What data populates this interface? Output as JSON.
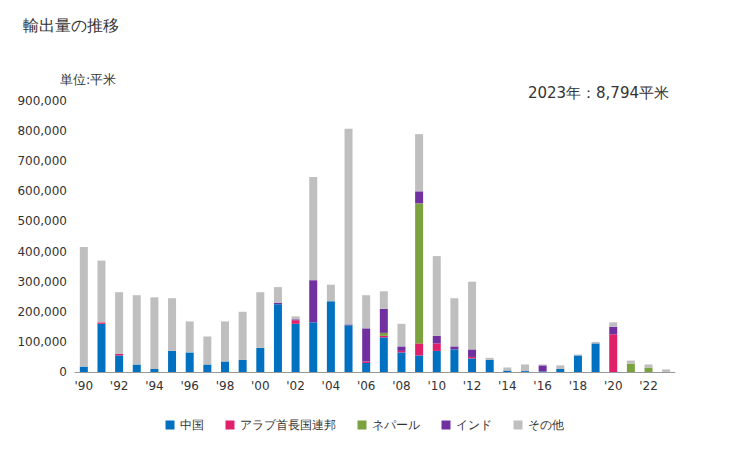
{
  "chart_data": {
    "type": "bar",
    "title": "輸出量の推移",
    "subtitle": "単位:平米",
    "annotation": "2023年：8,794平米",
    "stacked": true,
    "grid": false,
    "legend": "bottom",
    "categories": [
      "'90",
      null,
      "'92",
      null,
      "'94",
      null,
      "'96",
      null,
      "'98",
      null,
      "'00",
      null,
      "'02",
      null,
      "'04",
      null,
      "'06",
      null,
      "'08",
      null,
      "'10",
      null,
      "'12",
      null,
      "'14",
      null,
      "'16",
      null,
      "'18",
      null,
      "'20",
      null,
      "'22",
      null
    ],
    "series": [
      {
        "name": "中国",
        "color": "#0070c0",
        "values": [
          18000,
          160000,
          55000,
          25000,
          10000,
          70000,
          65000,
          25000,
          35000,
          40000,
          80000,
          225000,
          160000,
          165000,
          235000,
          155000,
          30000,
          115000,
          65000,
          55000,
          70000,
          75000,
          45000,
          40000,
          5000,
          3000,
          2000,
          10000,
          55000,
          95000,
          0,
          0,
          0,
          0
        ]
      },
      {
        "name": "アラブ首長国連邦",
        "color": "#e0206a",
        "values": [
          0,
          5000,
          5000,
          0,
          0,
          0,
          0,
          0,
          0,
          0,
          0,
          0,
          12000,
          0,
          0,
          0,
          5000,
          5000,
          5000,
          40000,
          25000,
          0,
          5000,
          0,
          0,
          0,
          0,
          0,
          0,
          0,
          125000,
          0,
          0,
          0
        ]
      },
      {
        "name": "ネパール",
        "color": "#7ba23f",
        "values": [
          0,
          0,
          0,
          0,
          0,
          0,
          0,
          0,
          0,
          0,
          0,
          0,
          0,
          0,
          0,
          0,
          0,
          10000,
          0,
          465000,
          0,
          0,
          0,
          0,
          0,
          0,
          0,
          0,
          0,
          0,
          0,
          28000,
          15000,
          0
        ]
      },
      {
        "name": "インド",
        "color": "#7030a0",
        "values": [
          0,
          0,
          0,
          0,
          0,
          0,
          0,
          0,
          0,
          0,
          0,
          5000,
          3000,
          140000,
          0,
          3000,
          110000,
          80000,
          15000,
          40000,
          25000,
          10000,
          25000,
          0,
          0,
          0,
          20000,
          0,
          0,
          0,
          25000,
          0,
          0,
          0
        ]
      },
      {
        "name": "その他",
        "color": "#bfbfbf",
        "values": [
          397000,
          205000,
          205000,
          230000,
          238000,
          175000,
          103000,
          93000,
          133000,
          160000,
          185000,
          52000,
          10000,
          343000,
          55000,
          650000,
          110000,
          58000,
          75000,
          190000,
          265000,
          160000,
          225000,
          7000,
          10000,
          22000,
          3000,
          12000,
          3000,
          5000,
          15000,
          10000,
          10000,
          8794
        ]
      }
    ],
    "ylim": [
      0,
      900000
    ],
    "yticks": [
      {
        "value": 0,
        "label": "0"
      },
      {
        "value": 100000,
        "label": "100,000"
      },
      {
        "value": 200000,
        "label": "200,000"
      },
      {
        "value": 300000,
        "label": "300,000"
      },
      {
        "value": 400000,
        "label": "400,000"
      },
      {
        "value": 500000,
        "label": "500,000"
      },
      {
        "value": 600000,
        "label": "600,000"
      },
      {
        "value": 700000,
        "label": "700,000"
      },
      {
        "value": 800000,
        "label": "800,000"
      },
      {
        "value": 900000,
        "label": "900,000"
      }
    ]
  }
}
